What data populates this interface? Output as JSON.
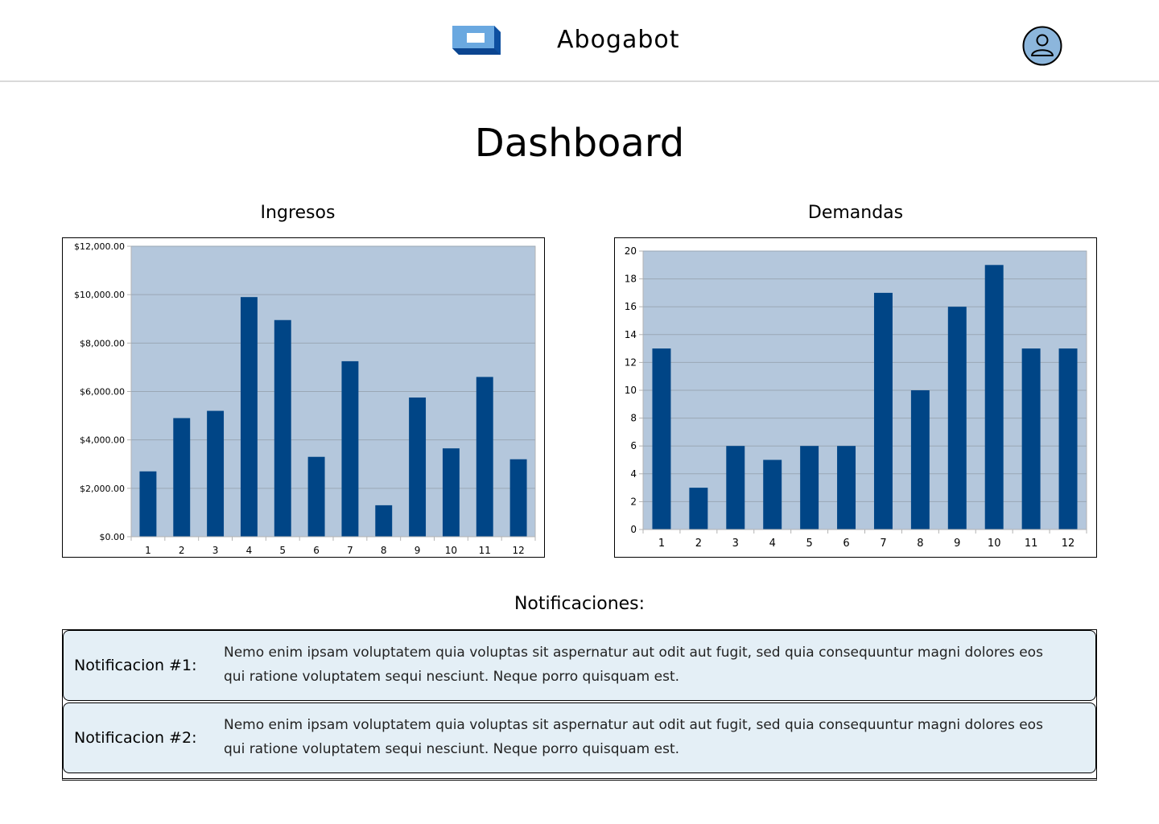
{
  "header": {
    "brand": "Abogabot",
    "logo_icon": "cube-logo",
    "profile_icon": "user-icon"
  },
  "page_title": "Dashboard",
  "charts": {
    "ingresos_title": "Ingresos",
    "demandas_title": "Demandas"
  },
  "chart_data": [
    {
      "type": "bar",
      "title": "Ingresos",
      "categories": [
        "1",
        "2",
        "3",
        "4",
        "5",
        "6",
        "7",
        "8",
        "9",
        "10",
        "11",
        "12"
      ],
      "values": [
        2700,
        4900,
        5200,
        9900,
        8950,
        3300,
        7250,
        1300,
        5750,
        3650,
        6600,
        3200
      ],
      "ylim": [
        0,
        12000
      ],
      "yticks": [
        0,
        2000,
        4000,
        6000,
        8000,
        10000,
        12000
      ],
      "ytick_labels": [
        "$0.00",
        "$2,000.00",
        "$4,000.00",
        "$6,000.00",
        "$8,000.00",
        "$10,000.00",
        "$12,000.00"
      ],
      "grid": true,
      "plot_bg": "#b4c7dc",
      "bar_color": "#004586"
    },
    {
      "type": "bar",
      "title": "Demandas",
      "categories": [
        "1",
        "2",
        "3",
        "4",
        "5",
        "6",
        "7",
        "8",
        "9",
        "10",
        "11",
        "12"
      ],
      "values": [
        13,
        3,
        6,
        5,
        6,
        6,
        17,
        10,
        16,
        19,
        13,
        13
      ],
      "ylim": [
        0,
        20
      ],
      "yticks": [
        0,
        2,
        4,
        6,
        8,
        10,
        12,
        14,
        16,
        18,
        20
      ],
      "ytick_labels": [
        "0",
        "2",
        "4",
        "6",
        "8",
        "10",
        "12",
        "14",
        "16",
        "18",
        "20"
      ],
      "grid": true,
      "plot_bg": "#b4c7dc",
      "bar_color": "#004586"
    }
  ],
  "notifications": {
    "title": "Notificaciones:",
    "items": [
      {
        "label": "Notificacion #1:",
        "text": "Nemo enim ipsam voluptatem quia voluptas sit aspernatur aut odit aut fugit, sed quia consequuntur magni dolores eos qui ratione voluptatem sequi nesciunt. Neque porro quisquam est."
      },
      {
        "label": "Notificacion #2:",
        "text": "Nemo enim ipsam voluptatem quia voluptas sit aspernatur aut odit aut fugit, sed quia consequuntur magni dolores eos qui ratione voluptatem sequi nesciunt. Neque porro quisquam est."
      }
    ]
  },
  "colors": {
    "accent": "#004586",
    "plot_bg": "#b4c7dc",
    "notification_bg": "#e4eff6",
    "avatar_bg": "#8cb6dc"
  }
}
